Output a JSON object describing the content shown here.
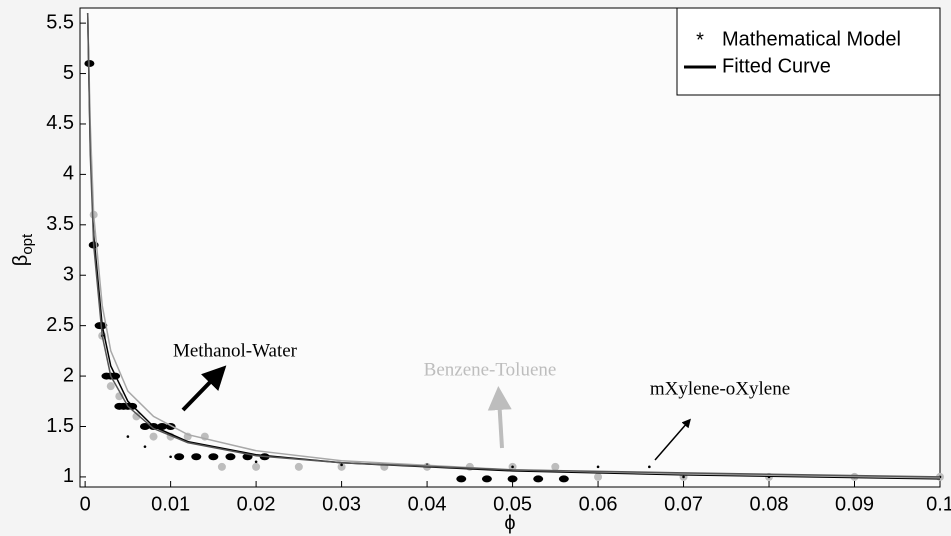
{
  "chart_data": {
    "type": "scatter",
    "xlabel": "ϕ",
    "ylabel": "β",
    "ylabel_subscript": "opt",
    "xlim": [
      -0.0006,
      0.1
    ],
    "ylim": [
      0.9,
      5.65
    ],
    "xticks": [
      0,
      0.01,
      0.02,
      0.03,
      0.04,
      0.05,
      0.06,
      0.07,
      0.08,
      0.09,
      0.1
    ],
    "yticks": [
      1,
      1.5,
      2,
      2.5,
      3,
      3.5,
      4,
      4.5,
      5,
      5.5
    ],
    "legend": {
      "entries": [
        "Mathematical Model",
        "Fitted Curve"
      ],
      "position": "upper right"
    },
    "series": [
      {
        "name": "Methanol-Water",
        "type": "scatter",
        "marker": "star",
        "color": "#000000",
        "x": [
          0.0005,
          0.001,
          0.0017,
          0.002,
          0.0025,
          0.003,
          0.0035,
          0.004,
          0.0045,
          0.005,
          0.0055,
          0.007,
          0.008,
          0.009,
          0.01,
          0.011,
          0.013,
          0.015,
          0.017,
          0.019,
          0.021,
          0.044,
          0.047,
          0.05,
          0.053,
          0.056
        ],
        "values": [
          5.1,
          3.3,
          2.5,
          2.5,
          2.0,
          2.0,
          2.0,
          1.7,
          1.7,
          1.7,
          1.7,
          1.5,
          1.5,
          1.5,
          1.5,
          1.2,
          1.2,
          1.2,
          1.2,
          1.2,
          1.2,
          0.98,
          0.98,
          0.98,
          0.98,
          0.98
        ]
      },
      {
        "name": "Benzene-Toluene",
        "type": "scatter",
        "marker": "circle",
        "color": "#bdbdbd",
        "x": [
          0.001,
          0.002,
          0.003,
          0.004,
          0.006,
          0.008,
          0.01,
          0.012,
          0.014,
          0.016,
          0.02,
          0.025,
          0.03,
          0.035,
          0.04,
          0.045,
          0.05,
          0.055,
          0.06,
          0.07,
          0.08,
          0.09,
          0.1
        ],
        "values": [
          3.6,
          2.4,
          1.9,
          1.8,
          1.6,
          1.4,
          1.4,
          1.4,
          1.4,
          1.1,
          1.1,
          1.1,
          1.1,
          1.1,
          1.1,
          1.1,
          1.1,
          1.1,
          1.0,
          1.0,
          1.0,
          1.0,
          1.0
        ]
      },
      {
        "name": "mXylene-oXylene",
        "type": "scatter",
        "marker": "dot",
        "color": "#000000",
        "x": [
          0.002,
          0.005,
          0.007,
          0.01,
          0.02,
          0.03,
          0.04,
          0.05,
          0.06,
          0.066,
          0.07,
          0.08,
          0.09,
          0.1
        ],
        "values": [
          2.4,
          1.4,
          1.3,
          1.2,
          1.15,
          1.12,
          1.12,
          1.1,
          1.1,
          1.1,
          1.0,
          1.0,
          1.0,
          1.0
        ]
      },
      {
        "type": "line",
        "color": "#000000",
        "x": [
          0.0003,
          0.0006,
          0.001,
          0.002,
          0.003,
          0.005,
          0.008,
          0.012,
          0.02,
          0.03,
          0.05,
          0.07,
          0.1
        ],
        "values": [
          5.6,
          4.3,
          3.4,
          2.5,
          2.1,
          1.75,
          1.5,
          1.35,
          1.22,
          1.14,
          1.06,
          1.02,
          0.98
        ]
      },
      {
        "type": "line",
        "color": "#a8a8a8",
        "x": [
          0.0003,
          0.0006,
          0.001,
          0.002,
          0.003,
          0.005,
          0.008,
          0.012,
          0.02,
          0.03,
          0.05,
          0.07,
          0.1
        ],
        "values": [
          5.6,
          4.5,
          3.6,
          2.7,
          2.25,
          1.85,
          1.6,
          1.42,
          1.26,
          1.16,
          1.07,
          1.03,
          0.99
        ]
      },
      {
        "type": "line",
        "color": "#555555",
        "x": [
          0.0003,
          0.0006,
          0.001,
          0.002,
          0.003,
          0.005,
          0.008,
          0.012,
          0.02,
          0.03,
          0.05,
          0.07,
          0.1
        ],
        "values": [
          5.6,
          4.2,
          3.3,
          2.4,
          2.0,
          1.7,
          1.48,
          1.34,
          1.21,
          1.14,
          1.07,
          1.04,
          1.0
        ]
      }
    ]
  }
}
